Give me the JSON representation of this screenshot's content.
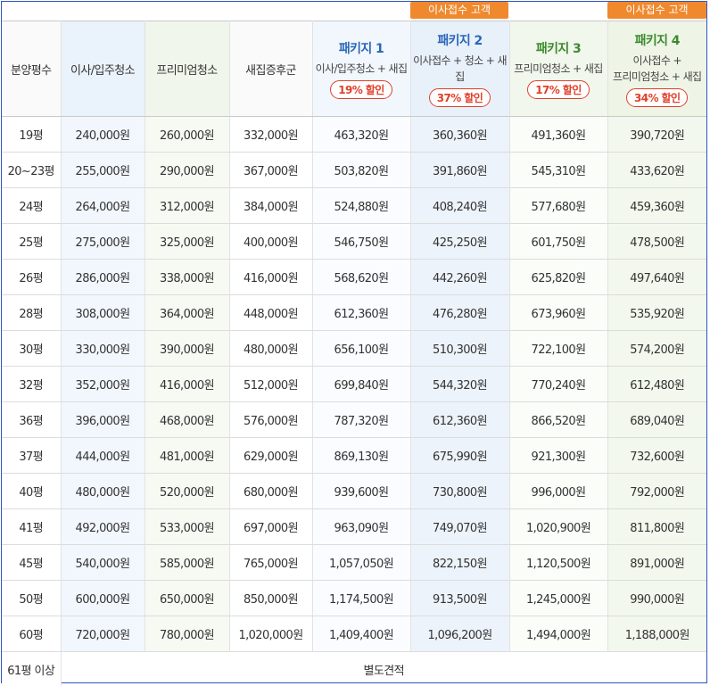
{
  "tags": [
    "이사접수 고객",
    "이사접수 고객"
  ],
  "headers": {
    "size": "분양평수",
    "move": "이사/입주청소",
    "premium": "프리미엄청소",
    "pest": "새집증후군",
    "packages": [
      {
        "title": "패키지 1",
        "desc1": "이사/입주청소 + 새집",
        "desc2": "",
        "discount": "19% 할인"
      },
      {
        "title": "패키지 2",
        "desc1": "이사접수 + 청소 + 새집",
        "desc2": "",
        "discount": "37% 할인"
      },
      {
        "title": "패키지 3",
        "desc1": "프리미엄청소 + 새집",
        "desc2": "",
        "discount": "17% 할인"
      },
      {
        "title": "패키지 4",
        "desc1": "이사접수 +",
        "desc2": "프리미엄청소 + 새집",
        "discount": "34% 할인"
      }
    ]
  },
  "rows": [
    [
      "19평",
      "240,000원",
      "260,000원",
      "332,000원",
      "463,320원",
      "360,360원",
      "491,360원",
      "390,720원"
    ],
    [
      "20~23평",
      "255,000원",
      "290,000원",
      "367,000원",
      "503,820원",
      "391,860원",
      "545,310원",
      "433,620원"
    ],
    [
      "24평",
      "264,000원",
      "312,000원",
      "384,000원",
      "524,880원",
      "408,240원",
      "577,680원",
      "459,360원"
    ],
    [
      "25평",
      "275,000원",
      "325,000원",
      "400,000원",
      "546,750원",
      "425,250원",
      "601,750원",
      "478,500원"
    ],
    [
      "26평",
      "286,000원",
      "338,000원",
      "416,000원",
      "568,620원",
      "442,260원",
      "625,820원",
      "497,640원"
    ],
    [
      "28평",
      "308,000원",
      "364,000원",
      "448,000원",
      "612,360원",
      "476,280원",
      "673,960원",
      "535,920원"
    ],
    [
      "30평",
      "330,000원",
      "390,000원",
      "480,000원",
      "656,100원",
      "510,300원",
      "722,100원",
      "574,200원"
    ],
    [
      "32평",
      "352,000원",
      "416,000원",
      "512,000원",
      "699,840원",
      "544,320원",
      "770,240원",
      "612,480원"
    ],
    [
      "36평",
      "396,000원",
      "468,000원",
      "576,000원",
      "787,320원",
      "612,360원",
      "866,520원",
      "689,040원"
    ],
    [
      "37평",
      "444,000원",
      "481,000원",
      "629,000원",
      "869,130원",
      "675,990원",
      "921,300원",
      "732,600원"
    ],
    [
      "40평",
      "480,000원",
      "520,000원",
      "680,000원",
      "939,600원",
      "730,800원",
      "996,000원",
      "792,000원"
    ],
    [
      "41평",
      "492,000원",
      "533,000원",
      "697,000원",
      "963,090원",
      "749,070원",
      "1,020,900원",
      "811,800원"
    ],
    [
      "45평",
      "540,000원",
      "585,000원",
      "765,000원",
      "1,057,050원",
      "822,150원",
      "1,120,500원",
      "891,000원"
    ],
    [
      "50평",
      "600,000원",
      "650,000원",
      "850,000원",
      "1,174,500원",
      "913,500원",
      "1,245,000원",
      "990,000원"
    ],
    [
      "60평",
      "720,000원",
      "780,000원",
      "1,020,000원",
      "1,409,400원",
      "1,096,200원",
      "1,494,000원",
      "1,188,000원"
    ]
  ],
  "last_row": {
    "size": "61평 이상",
    "note": "별도견적"
  }
}
